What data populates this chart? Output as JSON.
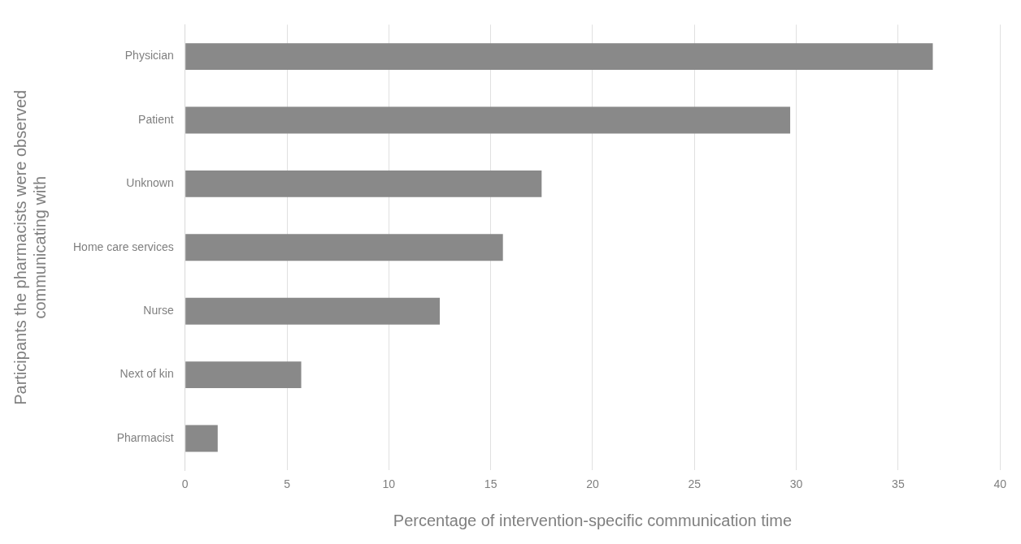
{
  "chart_data": {
    "type": "bar",
    "orientation": "horizontal",
    "xlabel": "Percentage of intervention-specific communication time",
    "ylabel": "Participants the pharmacists were observed communicating with",
    "categories": [
      "Physician",
      "Patient",
      "Unknown",
      "Home care services",
      "Nurse",
      "Next of kin",
      "Pharmacist"
    ],
    "values": [
      36.7,
      29.7,
      17.5,
      15.6,
      12.5,
      5.7,
      1.6
    ],
    "color": "#898989",
    "xlim": [
      0,
      40
    ],
    "xticks": [
      0,
      5,
      10,
      15,
      20,
      25,
      30,
      35,
      40
    ],
    "grid": "x",
    "legend": false
  }
}
